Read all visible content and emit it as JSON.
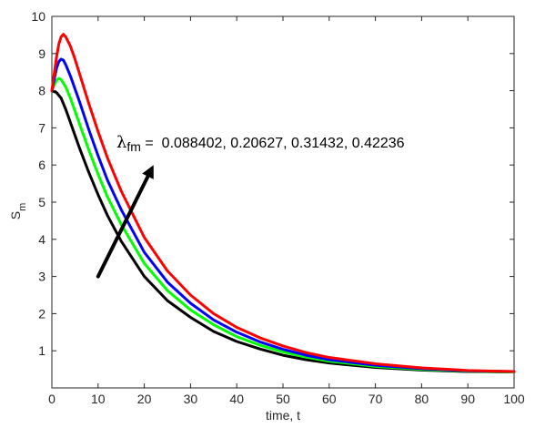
{
  "chart_data": {
    "type": "line",
    "title": "",
    "xlabel": "time, t",
    "ylabel": {
      "main": "S",
      "sub": "m"
    },
    "xlim": [
      0,
      100
    ],
    "ylim": [
      0,
      10
    ],
    "xticks": [
      "0",
      "10",
      "20",
      "30",
      "40",
      "50",
      "60",
      "70",
      "80",
      "90",
      "100"
    ],
    "yticks": [
      "1",
      "2",
      "3",
      "4",
      "5",
      "6",
      "7",
      "8",
      "9",
      "10"
    ],
    "grid": false,
    "legend": "none",
    "annotation": {
      "symbol": "λ",
      "subscript": "fm",
      "text": " =  0.088402, 0.20627, 0.31432, 0.42236",
      "arrow_from": [
        10,
        3.0
      ],
      "arrow_to": [
        22,
        6.0
      ]
    },
    "series": [
      {
        "color": "#000000",
        "points": [
          [
            0,
            8.0
          ],
          [
            1,
            7.95
          ],
          [
            2,
            7.8
          ],
          [
            3,
            7.5
          ],
          [
            4,
            7.15
          ],
          [
            5,
            6.8
          ],
          [
            6,
            6.45
          ],
          [
            8,
            5.8
          ],
          [
            10,
            5.2
          ],
          [
            12,
            4.65
          ],
          [
            15,
            3.95
          ],
          [
            20,
            3.0
          ],
          [
            25,
            2.35
          ],
          [
            30,
            1.9
          ],
          [
            35,
            1.52
          ],
          [
            40,
            1.25
          ],
          [
            45,
            1.05
          ],
          [
            50,
            0.88
          ],
          [
            55,
            0.76
          ],
          [
            60,
            0.67
          ],
          [
            70,
            0.55
          ],
          [
            80,
            0.48
          ],
          [
            90,
            0.44
          ],
          [
            100,
            0.43
          ]
        ]
      },
      {
        "color": "#00ff00",
        "points": [
          [
            0,
            8.0
          ],
          [
            0.5,
            8.15
          ],
          [
            1,
            8.28
          ],
          [
            1.5,
            8.33
          ],
          [
            2,
            8.3
          ],
          [
            3,
            8.1
          ],
          [
            4,
            7.8
          ],
          [
            5,
            7.45
          ],
          [
            6,
            7.1
          ],
          [
            8,
            6.4
          ],
          [
            10,
            5.75
          ],
          [
            12,
            5.15
          ],
          [
            15,
            4.4
          ],
          [
            20,
            3.35
          ],
          [
            25,
            2.62
          ],
          [
            30,
            2.1
          ],
          [
            35,
            1.7
          ],
          [
            40,
            1.38
          ],
          [
            45,
            1.15
          ],
          [
            50,
            0.97
          ],
          [
            55,
            0.83
          ],
          [
            60,
            0.72
          ],
          [
            70,
            0.58
          ],
          [
            80,
            0.5
          ],
          [
            90,
            0.45
          ],
          [
            100,
            0.43
          ]
        ]
      },
      {
        "color": "#0000ff",
        "points": [
          [
            0,
            8.0
          ],
          [
            0.5,
            8.3
          ],
          [
            1,
            8.6
          ],
          [
            1.5,
            8.78
          ],
          [
            2,
            8.85
          ],
          [
            2.5,
            8.82
          ],
          [
            3,
            8.7
          ],
          [
            4,
            8.4
          ],
          [
            5,
            8.05
          ],
          [
            6,
            7.7
          ],
          [
            8,
            6.95
          ],
          [
            10,
            6.25
          ],
          [
            12,
            5.6
          ],
          [
            15,
            4.8
          ],
          [
            20,
            3.65
          ],
          [
            25,
            2.85
          ],
          [
            30,
            2.28
          ],
          [
            35,
            1.83
          ],
          [
            40,
            1.5
          ],
          [
            45,
            1.24
          ],
          [
            50,
            1.04
          ],
          [
            55,
            0.88
          ],
          [
            60,
            0.76
          ],
          [
            70,
            0.61
          ],
          [
            80,
            0.52
          ],
          [
            90,
            0.46
          ],
          [
            100,
            0.44
          ]
        ]
      },
      {
        "color": "#ff0000",
        "points": [
          [
            0,
            8.0
          ],
          [
            0.5,
            8.45
          ],
          [
            1,
            8.9
          ],
          [
            1.5,
            9.25
          ],
          [
            2,
            9.45
          ],
          [
            2.5,
            9.52
          ],
          [
            3,
            9.45
          ],
          [
            4,
            9.2
          ],
          [
            5,
            8.85
          ],
          [
            6,
            8.45
          ],
          [
            8,
            7.65
          ],
          [
            10,
            6.9
          ],
          [
            12,
            6.2
          ],
          [
            15,
            5.3
          ],
          [
            20,
            4.05
          ],
          [
            25,
            3.15
          ],
          [
            30,
            2.5
          ],
          [
            35,
            2.0
          ],
          [
            40,
            1.63
          ],
          [
            45,
            1.35
          ],
          [
            50,
            1.13
          ],
          [
            55,
            0.95
          ],
          [
            60,
            0.82
          ],
          [
            70,
            0.65
          ],
          [
            80,
            0.54
          ],
          [
            90,
            0.47
          ],
          [
            100,
            0.44
          ]
        ]
      }
    ]
  }
}
